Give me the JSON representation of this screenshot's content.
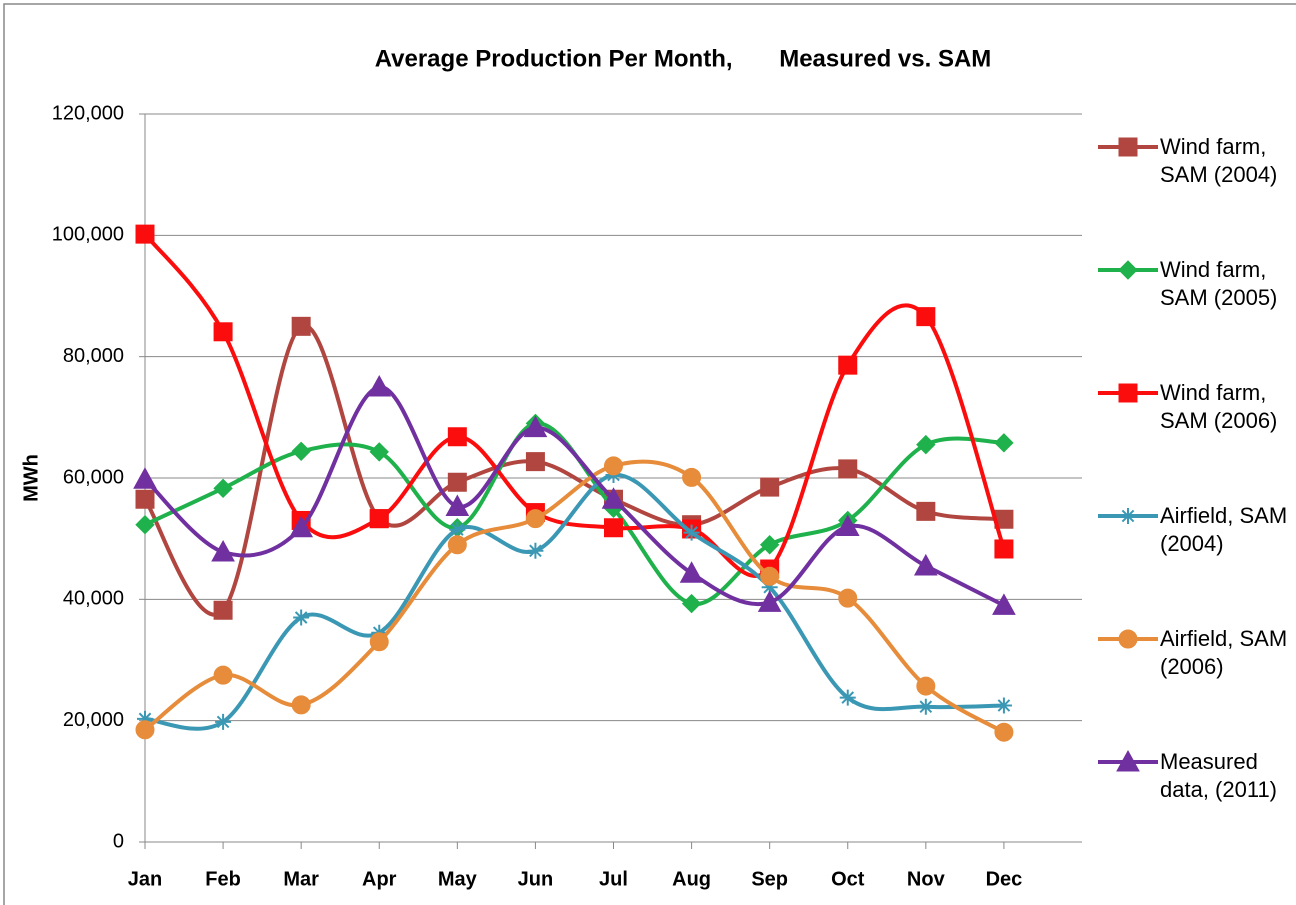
{
  "chart_data": {
    "type": "line",
    "smooth": true,
    "title": "Average Production Per Month,       Measured vs. SAM",
    "y_label": "MWh",
    "categories": [
      "Jan",
      "Feb",
      "Mar",
      "Apr",
      "May",
      "Jun",
      "Jul",
      "Aug",
      "Sep",
      "Oct",
      "Nov",
      "Dec"
    ],
    "ylim": [
      0,
      120000
    ],
    "yticks": [
      0,
      {
        "value": 20000,
        "label": "20,000"
      },
      {
        "value": 40000,
        "label": "40,000"
      },
      {
        "value": 60000,
        "label": "60,000"
      },
      {
        "value": 80000,
        "label": "80,000"
      },
      {
        "value": 100000,
        "label": "100,000"
      },
      {
        "value": 120000,
        "label": "120,000"
      }
    ],
    "grid": true,
    "legend": "right",
    "series": [
      {
        "name": "Wind farm, SAM (2004)",
        "color": "#b0463f",
        "marker": "square",
        "values": [
          56500,
          38200,
          85000,
          53300,
          59300,
          62700,
          56500,
          52300,
          58500,
          61500,
          54500,
          53200
        ]
      },
      {
        "name": "Wind farm, SAM (2005)",
        "color": "#1fb14b",
        "marker": "diamond",
        "values": [
          52300,
          58300,
          64400,
          64300,
          51800,
          69000,
          55000,
          39300,
          49000,
          53000,
          65500,
          65800
        ]
      },
      {
        "name": "Wind farm, SAM (2006)",
        "color": "#fb0d0d",
        "marker": "square",
        "values": [
          100200,
          84100,
          53000,
          53300,
          66800,
          54300,
          51800,
          51600,
          45000,
          78600,
          86600,
          48300
        ]
      },
      {
        "name": "Airfield, SAM (2004)",
        "color": "#3b98b4",
        "marker": "star",
        "values": [
          20300,
          19800,
          37000,
          34500,
          51500,
          48000,
          60500,
          51000,
          42000,
          23800,
          22300,
          22500
        ]
      },
      {
        "name": "Airfield, SAM (2006)",
        "color": "#e68c3a",
        "marker": "circle",
        "values": [
          18500,
          27500,
          22600,
          33000,
          49000,
          53300,
          62000,
          60100,
          43800,
          40200,
          25700,
          18100
        ]
      },
      {
        "name": "Measured data, (2011)",
        "color": "#7030a0",
        "marker": "triangle",
        "values": [
          59800,
          47800,
          51800,
          75000,
          55300,
          68300,
          56500,
          44300,
          39500,
          52000,
          45500,
          39000
        ]
      }
    ]
  }
}
